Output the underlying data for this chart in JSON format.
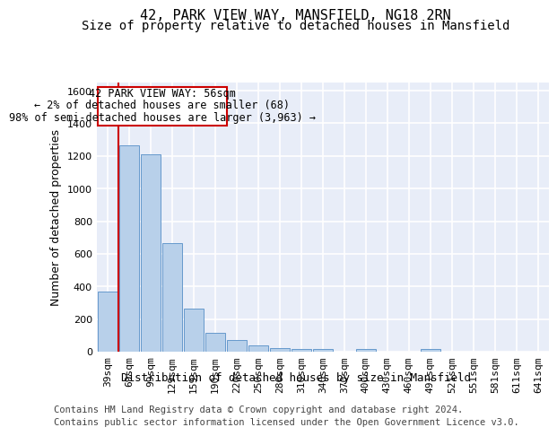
{
  "title_line1": "42, PARK VIEW WAY, MANSFIELD, NG18 2RN",
  "title_line2": "Size of property relative to detached houses in Mansfield",
  "xlabel": "Distribution of detached houses by size in Mansfield",
  "ylabel": "Number of detached properties",
  "categories": [
    "39sqm",
    "69sqm",
    "99sqm",
    "129sqm",
    "159sqm",
    "190sqm",
    "220sqm",
    "250sqm",
    "280sqm",
    "310sqm",
    "340sqm",
    "370sqm",
    "400sqm",
    "430sqm",
    "460sqm",
    "491sqm",
    "521sqm",
    "551sqm",
    "581sqm",
    "611sqm",
    "641sqm"
  ],
  "values": [
    370,
    1265,
    1210,
    665,
    265,
    115,
    70,
    37,
    20,
    15,
    15,
    0,
    15,
    0,
    0,
    15,
    0,
    0,
    0,
    0,
    0
  ],
  "bar_color": "#b8d0ea",
  "bar_edge_color": "#6699cc",
  "background_color": "#e8edf8",
  "grid_color": "#ffffff",
  "annotation_box_text_line1": "42 PARK VIEW WAY: 56sqm",
  "annotation_box_text_line2": "← 2% of detached houses are smaller (68)",
  "annotation_box_text_line3": "98% of semi-detached houses are larger (3,963) →",
  "annotation_box_color": "#ffffff",
  "annotation_box_edge_color": "#cc0000",
  "vline_color": "#cc0000",
  "ylim": [
    0,
    1650
  ],
  "yticks": [
    0,
    200,
    400,
    600,
    800,
    1000,
    1200,
    1400,
    1600
  ],
  "footer_line1": "Contains HM Land Registry data © Crown copyright and database right 2024.",
  "footer_line2": "Contains public sector information licensed under the Open Government Licence v3.0.",
  "title_fontsize": 11,
  "subtitle_fontsize": 10,
  "axis_label_fontsize": 9,
  "tick_fontsize": 8,
  "annotation_fontsize": 8.5,
  "footer_fontsize": 7.5
}
